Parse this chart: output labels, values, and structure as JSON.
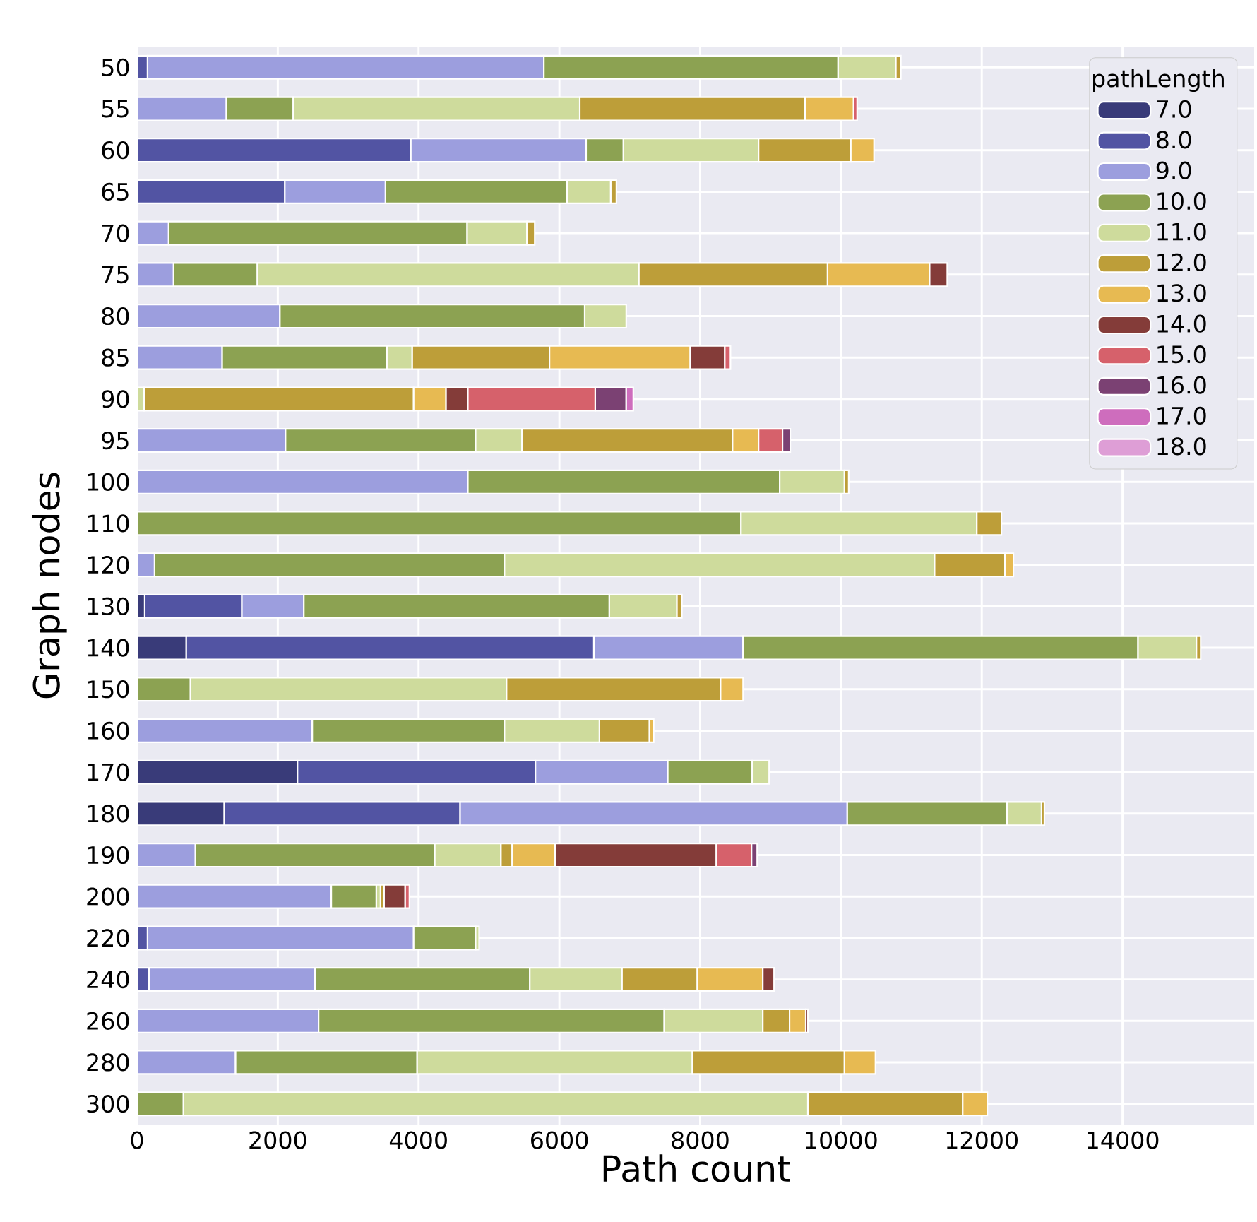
{
  "chart_data": {
    "type": "bar",
    "orientation": "horizontal",
    "stacked": true,
    "xlabel": "Path count",
    "ylabel": "Graph nodes",
    "legend_title": "pathLength",
    "legend": "top right",
    "grid": true,
    "xlim": [
      0,
      15870
    ],
    "xticks": [
      0,
      2000,
      4000,
      6000,
      8000,
      10000,
      12000,
      14000
    ],
    "categories": [
      "50",
      "55",
      "60",
      "65",
      "70",
      "75",
      "80",
      "85",
      "90",
      "95",
      "100",
      "110",
      "120",
      "130",
      "140",
      "150",
      "160",
      "170",
      "180",
      "190",
      "200",
      "220",
      "240",
      "260",
      "280",
      "300"
    ],
    "series": [
      {
        "name": "7.0",
        "color": "#393b79",
        "values": [
          null,
          null,
          null,
          null,
          null,
          null,
          null,
          null,
          null,
          null,
          null,
          null,
          null,
          110,
          700,
          null,
          null,
          2280,
          1240,
          null,
          null,
          null,
          null,
          null,
          null,
          null
        ]
      },
      {
        "name": "8.0",
        "color": "#5254a3",
        "values": [
          150,
          null,
          3890,
          2100,
          null,
          null,
          null,
          null,
          null,
          null,
          null,
          null,
          null,
          1380,
          5790,
          null,
          null,
          3380,
          3350,
          null,
          null,
          150,
          170,
          null,
          null,
          null
        ]
      },
      {
        "name": "9.0",
        "color": "#9c9ede",
        "values": [
          5630,
          1270,
          2490,
          1430,
          450,
          520,
          2030,
          1210,
          null,
          2110,
          4700,
          null,
          250,
          880,
          2120,
          null,
          2490,
          1880,
          5500,
          830,
          2760,
          3780,
          2360,
          2580,
          1400,
          null
        ]
      },
      {
        "name": "10.0",
        "color": "#8ca252",
        "values": [
          4180,
          950,
          530,
          2580,
          4240,
          1190,
          4330,
          2340,
          null,
          2700,
          4430,
          8580,
          4970,
          4340,
          5610,
          760,
          2730,
          1200,
          2270,
          3400,
          640,
          880,
          3050,
          4910,
          2580,
          660
        ]
      },
      {
        "name": "11.0",
        "color": "#cedb9c",
        "values": [
          820,
          4070,
          1920,
          620,
          850,
          5420,
          590,
          360,
          100,
          660,
          920,
          3350,
          6110,
          960,
          830,
          4490,
          1350,
          240,
          490,
          940,
          60,
          50,
          1310,
          1400,
          3910,
          8870
        ]
      },
      {
        "name": "12.0",
        "color": "#bd9e39",
        "values": [
          70,
          3200,
          1310,
          80,
          110,
          2680,
          null,
          1950,
          3830,
          2990,
          60,
          350,
          1000,
          70,
          60,
          3040,
          710,
          null,
          40,
          160,
          50,
          null,
          1070,
          380,
          2160,
          2200
        ]
      },
      {
        "name": "13.0",
        "color": "#e7ba52",
        "values": [
          null,
          690,
          330,
          null,
          null,
          1450,
          null,
          2000,
          460,
          370,
          null,
          null,
          120,
          null,
          null,
          320,
          60,
          null,
          null,
          610,
          null,
          null,
          930,
          230,
          440,
          350
        ]
      },
      {
        "name": "14.0",
        "color": "#843c39",
        "values": [
          null,
          null,
          null,
          null,
          null,
          250,
          null,
          490,
          310,
          null,
          null,
          null,
          null,
          null,
          null,
          null,
          null,
          null,
          null,
          2290,
          300,
          null,
          160,
          30,
          null,
          null
        ]
      },
      {
        "name": "15.0",
        "color": "#d6616b",
        "values": [
          null,
          50,
          null,
          null,
          null,
          null,
          null,
          80,
          1810,
          340,
          null,
          null,
          null,
          null,
          null,
          null,
          null,
          null,
          null,
          500,
          60,
          null,
          null,
          null,
          null,
          null
        ]
      },
      {
        "name": "16.0",
        "color": "#7b4173",
        "values": [
          null,
          null,
          null,
          null,
          null,
          null,
          null,
          null,
          440,
          110,
          null,
          null,
          null,
          null,
          null,
          null,
          null,
          null,
          null,
          80,
          null,
          null,
          null,
          null,
          null,
          null
        ]
      },
      {
        "name": "17.0",
        "color": "#ce6dbd",
        "values": [
          null,
          null,
          null,
          null,
          null,
          null,
          null,
          null,
          100,
          null,
          null,
          null,
          null,
          null,
          null,
          null,
          null,
          null,
          null,
          null,
          null,
          null,
          null,
          null,
          null,
          null
        ]
      },
      {
        "name": "18.0",
        "color": "#de9ed6",
        "values": [
          null,
          null,
          null,
          null,
          null,
          null,
          null,
          null,
          null,
          null,
          null,
          null,
          null,
          null,
          null,
          null,
          null,
          null,
          null,
          null,
          null,
          null,
          null,
          null,
          null,
          null
        ]
      }
    ]
  }
}
